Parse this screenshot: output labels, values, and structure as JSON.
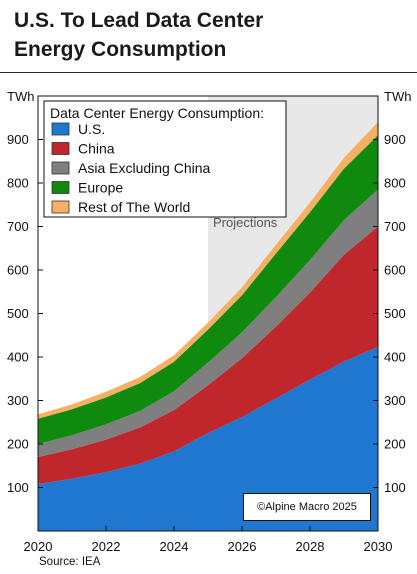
{
  "header": {
    "title_line1": "U.S. To Lead Data Center",
    "title_line2": "Energy Consumption"
  },
  "footer": {
    "source": "Source: IEA",
    "copyright": "©Alpine Macro 2025"
  },
  "chart_data": {
    "type": "area",
    "stacked": true,
    "title": "U.S. To Lead Data Center Energy Consumption",
    "legend_title": "Data Center Energy Consumption:",
    "legend_position": "top-left",
    "y_unit_left": "TWh",
    "y_unit_right": "TWh",
    "ylim": [
      0,
      1000
    ],
    "y_ticks": [
      100,
      200,
      300,
      400,
      500,
      600,
      700,
      800,
      900
    ],
    "xlim": [
      2020,
      2030
    ],
    "x_ticks": [
      2020,
      2022,
      2024,
      2026,
      2028,
      2030
    ],
    "grid": false,
    "shaded_region": {
      "x_start": 2025,
      "x_end": 2030,
      "label": "Projections",
      "color": "#e8e8e8"
    },
    "x": [
      2020,
      2021,
      2022,
      2023,
      2024,
      2025,
      2026,
      2027,
      2028,
      2029,
      2030
    ],
    "series": [
      {
        "name": "U.S.",
        "color": "#1f77d0",
        "values": [
          108,
          120,
          135,
          155,
          183,
          225,
          262,
          305,
          348,
          390,
          423
        ]
      },
      {
        "name": "China",
        "color": "#c0272d",
        "values": [
          62,
          68,
          75,
          83,
          95,
          110,
          135,
          165,
          200,
          245,
          277
        ]
      },
      {
        "name": "Asia Excluding China",
        "color": "#7f7f7f",
        "values": [
          30,
          32,
          35,
          38,
          43,
          52,
          60,
          68,
          75,
          80,
          85
        ]
      },
      {
        "name": "Europe",
        "color": "#0f8a0f",
        "values": [
          58,
          60,
          62,
          64,
          68,
          76,
          85,
          100,
          110,
          118,
          125
        ]
      },
      {
        "name": "Rest of The World",
        "color": "#f5b063",
        "values": [
          10,
          11,
          13,
          14,
          15,
          16,
          18,
          20,
          22,
          25,
          30
        ]
      }
    ]
  }
}
